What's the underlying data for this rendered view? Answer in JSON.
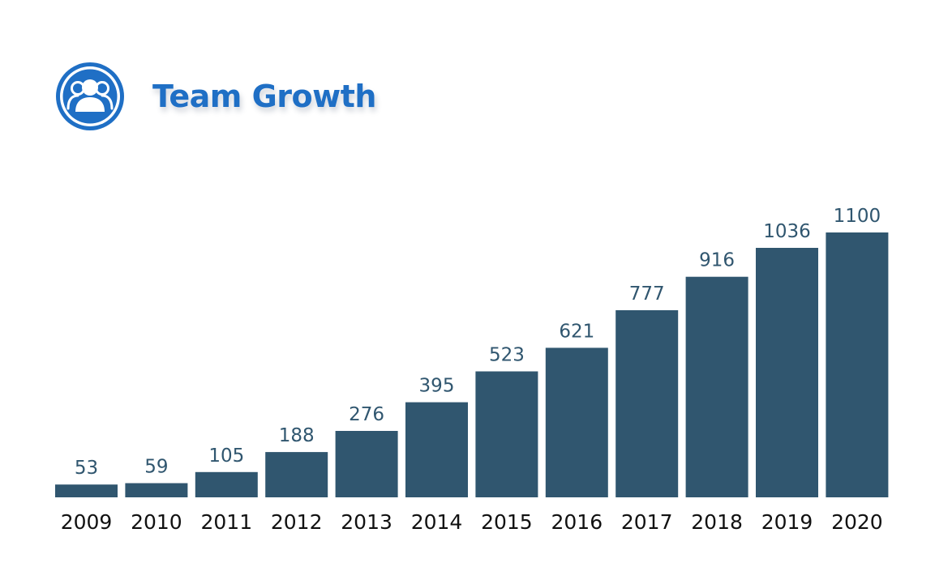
{
  "header": {
    "title": "Team Growth",
    "icon": "team-people-icon"
  },
  "colors": {
    "title": "#1f6fc5",
    "bar": "#30566f",
    "value_label": "#30566f",
    "category_label": "#111111"
  },
  "chart_data": {
    "type": "bar",
    "title": "Team Growth",
    "xlabel": "",
    "ylabel": "",
    "grid": false,
    "categories": [
      "2009",
      "2010",
      "2011",
      "2012",
      "2013",
      "2014",
      "2015",
      "2016",
      "2017",
      "2018",
      "2019",
      "2020"
    ],
    "values": [
      53,
      59,
      105,
      188,
      276,
      395,
      523,
      621,
      777,
      916,
      1036,
      1100
    ],
    "ylim": [
      0,
      1100
    ]
  }
}
